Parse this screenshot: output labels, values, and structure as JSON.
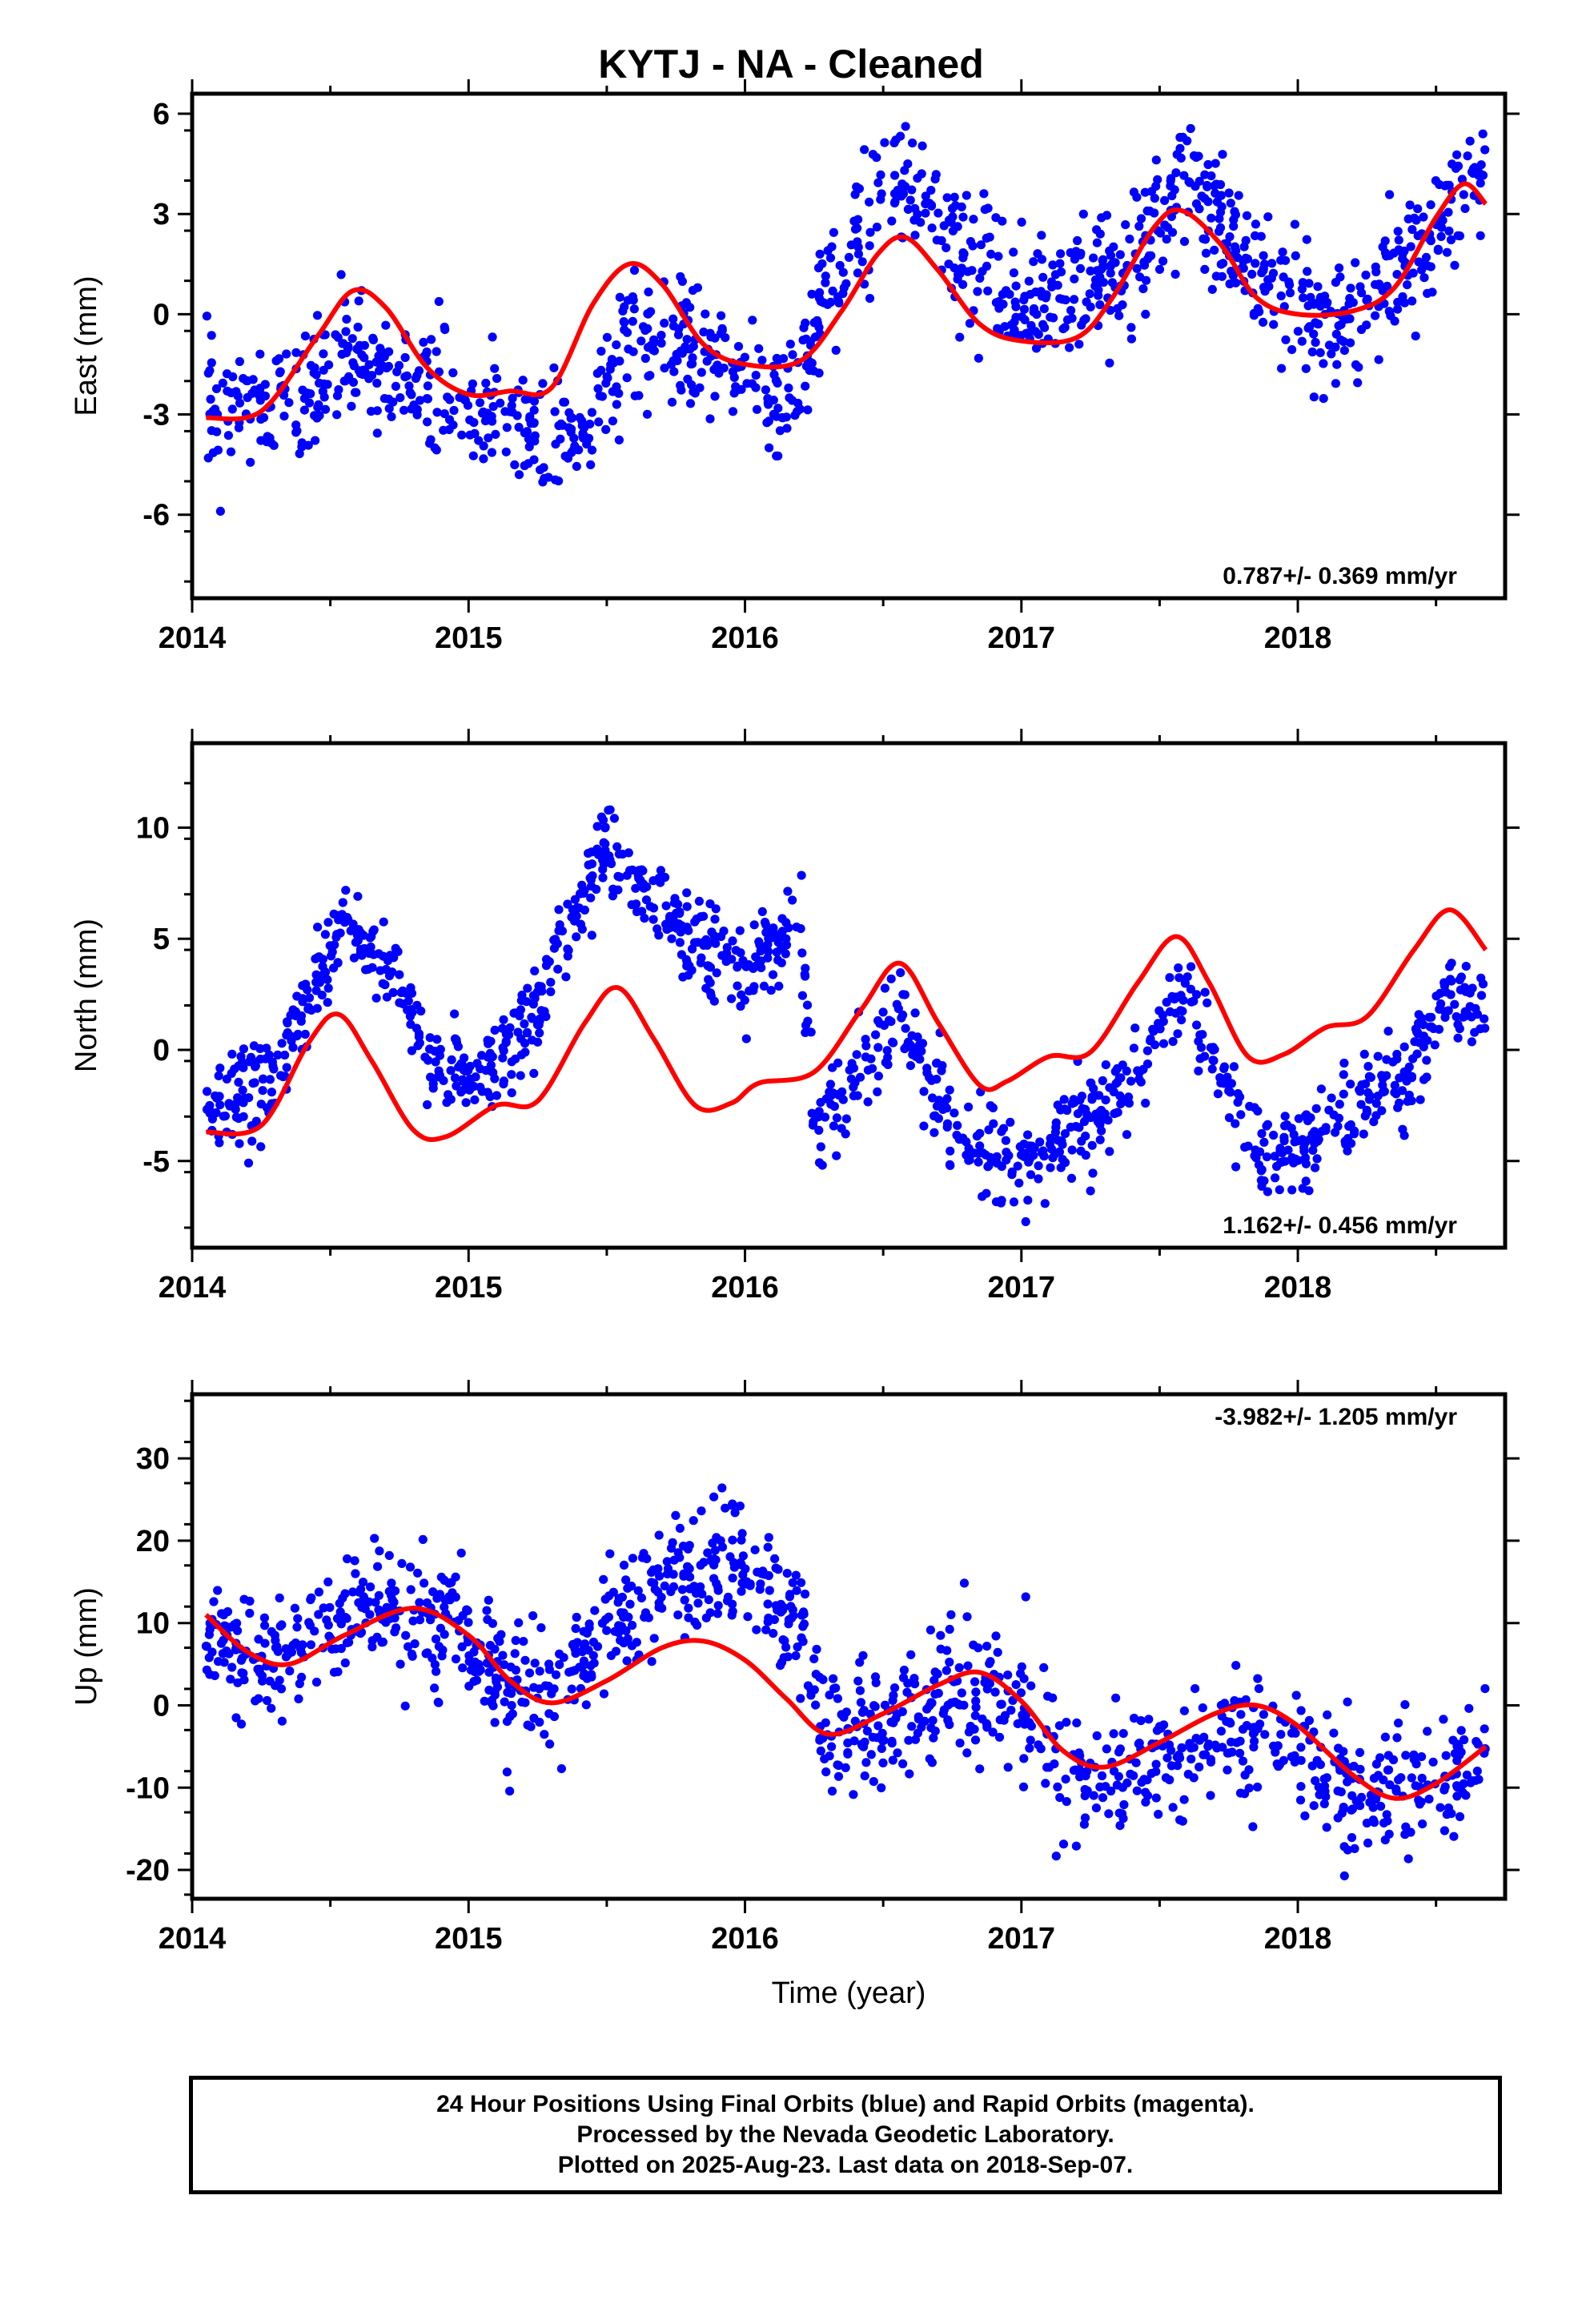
{
  "title": "KYTJ  - NA - Cleaned",
  "colors": {
    "data": "#0000ff",
    "model": "#ff0000",
    "frame": "#000000"
  },
  "chart_data": [
    {
      "type": "scatter",
      "ylabel": "East (mm)",
      "xlim": [
        2014.0,
        2018.75
      ],
      "ylim": [
        -8.5,
        6.6
      ],
      "yticks": [
        -6,
        -3,
        0,
        3,
        6
      ],
      "yticklabels": [
        "-6",
        "-3",
        "0",
        "3",
        "6"
      ],
      "xticks": [
        2014,
        2015,
        2016,
        2017,
        2018
      ],
      "xticklabels": [
        "2014",
        "2015",
        "2016",
        "2017",
        "2018"
      ],
      "rate_text": "0.787+/- 0.369 mm/yr",
      "series": [
        {
          "kind": "points",
          "color": "#0000ff",
          "knots": [
            [
              2014.05,
              -2.6
            ],
            [
              2014.3,
              -2.8
            ],
            [
              2014.6,
              -1.4
            ],
            [
              2014.9,
              -2.6
            ],
            [
              2015.2,
              -3.5
            ],
            [
              2015.4,
              -3.9
            ],
            [
              2015.6,
              -0.6
            ],
            [
              2015.9,
              -1.5
            ],
            [
              2016.15,
              -2.9
            ],
            [
              2016.3,
              0.8
            ],
            [
              2016.55,
              4.2
            ],
            [
              2016.75,
              2.2
            ],
            [
              2016.95,
              0.5
            ],
            [
              2017.15,
              0.6
            ],
            [
              2017.4,
              1.5
            ],
            [
              2017.6,
              4.0
            ],
            [
              2017.8,
              1.8
            ],
            [
              2018.0,
              0.0
            ],
            [
              2018.2,
              -0.1
            ],
            [
              2018.4,
              1.4
            ],
            [
              2018.6,
              4.0
            ],
            [
              2018.68,
              4.4
            ]
          ],
          "scatter_sd": 1.1,
          "step_after": 2016.22,
          "n_points": 1200
        },
        {
          "kind": "line",
          "color": "#ff0000",
          "knots": [
            [
              2014.05,
              -3.1
            ],
            [
              2014.25,
              -2.9
            ],
            [
              2014.45,
              -0.7
            ],
            [
              2014.58,
              0.7
            ],
            [
              2014.7,
              0.2
            ],
            [
              2014.85,
              -1.6
            ],
            [
              2015.0,
              -2.4
            ],
            [
              2015.15,
              -2.3
            ],
            [
              2015.3,
              -2.2
            ],
            [
              2015.45,
              0.3
            ],
            [
              2015.58,
              1.5
            ],
            [
              2015.7,
              0.9
            ],
            [
              2015.85,
              -0.9
            ],
            [
              2016.0,
              -1.5
            ],
            [
              2016.2,
              -1.4
            ],
            [
              2016.35,
              0.1
            ],
            [
              2016.48,
              1.8
            ],
            [
              2016.58,
              2.3
            ],
            [
              2016.7,
              1.3
            ],
            [
              2016.85,
              -0.3
            ],
            [
              2017.0,
              -0.8
            ],
            [
              2017.2,
              -0.7
            ],
            [
              2017.33,
              0.5
            ],
            [
              2017.48,
              2.6
            ],
            [
              2017.58,
              3.1
            ],
            [
              2017.72,
              2.1
            ],
            [
              2017.85,
              0.5
            ],
            [
              2018.0,
              0.0
            ],
            [
              2018.2,
              0.1
            ],
            [
              2018.35,
              0.8
            ],
            [
              2018.5,
              2.9
            ],
            [
              2018.6,
              3.9
            ],
            [
              2018.68,
              3.3
            ]
          ]
        }
      ]
    },
    {
      "type": "scatter",
      "ylabel": "North (mm)",
      "xlim": [
        2014.0,
        2018.75
      ],
      "ylim": [
        -8.9,
        13.8
      ],
      "yticks": [
        -5,
        0,
        5,
        10
      ],
      "yticklabels": [
        "-5",
        "0",
        "5",
        "10"
      ],
      "xticks": [
        2014,
        2015,
        2016,
        2017,
        2018
      ],
      "xticklabels": [
        "2014",
        "2015",
        "2016",
        "2017",
        "2018"
      ],
      "rate_text": "1.162+/- 0.456 mm/yr",
      "series": [
        {
          "kind": "points",
          "color": "#0000ff",
          "knots": [
            [
              2014.05,
              -2.5
            ],
            [
              2014.3,
              -1.2
            ],
            [
              2014.55,
              5.9
            ],
            [
              2014.7,
              3.8
            ],
            [
              2014.85,
              0.2
            ],
            [
              2015.05,
              -1.3
            ],
            [
              2015.2,
              0.5
            ],
            [
              2015.35,
              4.5
            ],
            [
              2015.5,
              9.3
            ],
            [
              2015.65,
              7.0
            ],
            [
              2015.85,
              4.5
            ],
            [
              2016.0,
              3.5
            ],
            [
              2016.2,
              6.0
            ],
            [
              2016.25,
              -3.5
            ],
            [
              2016.45,
              -0.2
            ],
            [
              2016.55,
              1.3
            ],
            [
              2016.75,
              -3.5
            ],
            [
              2016.9,
              -5.2
            ],
            [
              2017.1,
              -4.4
            ],
            [
              2017.35,
              -2.0
            ],
            [
              2017.6,
              2.5
            ],
            [
              2017.68,
              0.5
            ],
            [
              2017.85,
              -5.0
            ],
            [
              2018.0,
              -4.5
            ],
            [
              2018.2,
              -3.0
            ],
            [
              2018.4,
              -1.0
            ],
            [
              2018.55,
              2.6
            ],
            [
              2018.68,
              0.8
            ]
          ],
          "scatter_sd": 1.2,
          "step_after": 2016.22,
          "n_points": 1200
        },
        {
          "kind": "line",
          "color": "#ff0000",
          "knots": [
            [
              2014.05,
              -3.7
            ],
            [
              2014.25,
              -3.4
            ],
            [
              2014.42,
              0.3
            ],
            [
              2014.53,
              1.6
            ],
            [
              2014.65,
              -0.5
            ],
            [
              2014.8,
              -3.6
            ],
            [
              2014.92,
              -3.9
            ],
            [
              2015.1,
              -2.5
            ],
            [
              2015.25,
              -2.3
            ],
            [
              2015.42,
              1.2
            ],
            [
              2015.54,
              2.8
            ],
            [
              2015.67,
              0.5
            ],
            [
              2015.82,
              -2.5
            ],
            [
              2015.95,
              -2.4
            ],
            [
              2016.05,
              -1.5
            ],
            [
              2016.25,
              -1.0
            ],
            [
              2016.42,
              1.8
            ],
            [
              2016.56,
              3.9
            ],
            [
              2016.7,
              1.2
            ],
            [
              2016.85,
              -1.6
            ],
            [
              2016.95,
              -1.4
            ],
            [
              2017.1,
              -0.3
            ],
            [
              2017.25,
              -0.1
            ],
            [
              2017.42,
              3.0
            ],
            [
              2017.56,
              5.1
            ],
            [
              2017.68,
              3.0
            ],
            [
              2017.82,
              -0.3
            ],
            [
              2017.95,
              -0.2
            ],
            [
              2018.1,
              1.0
            ],
            [
              2018.25,
              1.5
            ],
            [
              2018.42,
              4.5
            ],
            [
              2018.55,
              6.3
            ],
            [
              2018.68,
              4.5
            ]
          ]
        }
      ]
    },
    {
      "type": "scatter",
      "ylabel": "Up (mm)",
      "xlabel": "Time (year)",
      "xlim": [
        2014.0,
        2018.75
      ],
      "ylim": [
        -23.5,
        37.8
      ],
      "yticks": [
        -20,
        -10,
        0,
        10,
        20,
        30
      ],
      "yticklabels": [
        "-20",
        "-10",
        "0",
        "10",
        "20",
        "30"
      ],
      "xticks": [
        2014,
        2015,
        2016,
        2017,
        2018
      ],
      "xticklabels": [
        "2014",
        "2015",
        "2016",
        "2017",
        "2018"
      ],
      "rate_text": "-3.982+/- 1.205 mm/yr",
      "series": [
        {
          "kind": "points",
          "color": "#0000ff",
          "knots": [
            [
              2014.05,
              9.0
            ],
            [
              2014.3,
              4.0
            ],
            [
              2014.5,
              9.5
            ],
            [
              2014.7,
              13.0
            ],
            [
              2014.95,
              9.0
            ],
            [
              2015.1,
              3.0
            ],
            [
              2015.3,
              1.0
            ],
            [
              2015.5,
              9.0
            ],
            [
              2015.7,
              14.0
            ],
            [
              2015.9,
              18.0
            ],
            [
              2016.2,
              10.0
            ],
            [
              2016.3,
              -4.0
            ],
            [
              2016.5,
              -2.0
            ],
            [
              2016.75,
              1.0
            ],
            [
              2016.95,
              2.0
            ],
            [
              2017.15,
              -8.0
            ],
            [
              2017.35,
              -9.0
            ],
            [
              2017.6,
              -5.5
            ],
            [
              2017.85,
              -3.0
            ],
            [
              2018.05,
              -7.0
            ],
            [
              2018.3,
              -11.0
            ],
            [
              2018.55,
              -8.0
            ],
            [
              2018.68,
              -6.0
            ]
          ],
          "scatter_sd": 4.5,
          "step_after": 2016.22,
          "n_points": 1200
        },
        {
          "kind": "line",
          "color": "#ff0000",
          "knots": [
            [
              2014.05,
              11.0
            ],
            [
              2014.2,
              6.5
            ],
            [
              2014.35,
              5.0
            ],
            [
              2014.55,
              8.5
            ],
            [
              2014.8,
              11.8
            ],
            [
              2015.0,
              8.5
            ],
            [
              2015.15,
              3.0
            ],
            [
              2015.3,
              0.3
            ],
            [
              2015.5,
              3.0
            ],
            [
              2015.7,
              7.0
            ],
            [
              2015.85,
              7.8
            ],
            [
              2016.0,
              5.5
            ],
            [
              2016.15,
              0.8
            ],
            [
              2016.3,
              -3.5
            ],
            [
              2016.5,
              -1.0
            ],
            [
              2016.7,
              2.5
            ],
            [
              2016.85,
              4.0
            ],
            [
              2017.0,
              0.5
            ],
            [
              2017.15,
              -5.5
            ],
            [
              2017.3,
              -7.5
            ],
            [
              2017.5,
              -4.5
            ],
            [
              2017.7,
              -1.0
            ],
            [
              2017.85,
              0.0
            ],
            [
              2018.0,
              -2.5
            ],
            [
              2018.2,
              -8.5
            ],
            [
              2018.35,
              -11.3
            ],
            [
              2018.5,
              -9.5
            ],
            [
              2018.68,
              -5.0
            ]
          ]
        }
      ]
    }
  ],
  "footer": {
    "line1": "24 Hour Positions Using Final Orbits (blue) and Rapid Orbits (magenta).",
    "line2": "Processed by the Nevada Geodetic Laboratory.",
    "line3": "Plotted on 2025-Aug-23. Last data on 2018-Sep-07."
  }
}
